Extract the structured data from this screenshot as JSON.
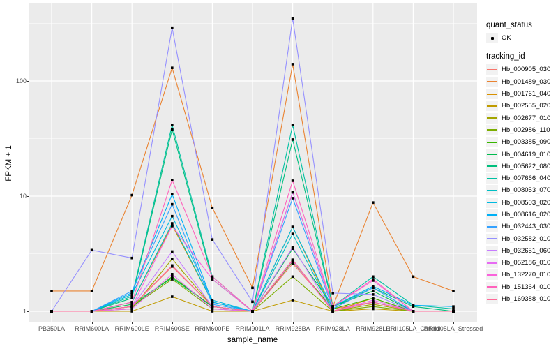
{
  "figure": {
    "x_axis_title": "sample_name",
    "y_axis_title": "FPKM + 1",
    "y_tick_labels": [
      "1",
      "10",
      "100"
    ]
  },
  "legend": {
    "quant_status": {
      "title": "quant_status",
      "items": [
        {
          "label": "OK",
          "symbol": "point"
        }
      ]
    },
    "tracking_id": {
      "title": "tracking_id"
    }
  },
  "colors": {
    "panel_background": "#EBEBEB",
    "grid": "#FFFFFF",
    "tick_text": "#4D4D4D",
    "point": "#000000",
    "legend_key_background": "#F2F2F2"
  },
  "chart_data": {
    "type": "line",
    "title": "",
    "xlabel": "sample_name",
    "ylabel": "FPKM + 1",
    "y_scale": "log10",
    "y_ticks": [
      1,
      10,
      100
    ],
    "y_minor_ticks": [
      3.162,
      31.62,
      316.2
    ],
    "ylim_log10": [
      -0.032,
      2.674
    ],
    "grid": true,
    "legend_position": "right",
    "point_legend": {
      "title": "quant_status",
      "items": [
        "OK"
      ]
    },
    "categories": [
      "PB350LA",
      "RRIM600LA",
      "RRIM600LE",
      "RRIM600SE",
      "RRIM600PE",
      "RRIM901LA",
      "RRIM928BA",
      "RRIM928LA",
      "RRIM928LE",
      "RRII105LA_Control",
      "RRII105LA_Stressed"
    ],
    "series": [
      {
        "name": "Hb_000905_030",
        "color": "#F8766D",
        "values": [
          1,
          1,
          1.1,
          2.45,
          1.1,
          1,
          2.6,
          1.05,
          1.2,
          1,
          1
        ]
      },
      {
        "name": "Hb_001489_030",
        "color": "#EA8331",
        "values": [
          1.5,
          1.5,
          10.2,
          130,
          7.9,
          1.6,
          140,
          1.1,
          8.8,
          2.0,
          1.5
        ]
      },
      {
        "name": "Hb_001761_040",
        "color": "#D89000",
        "values": [
          1,
          1,
          1.2,
          5.6,
          1.2,
          1,
          5.4,
          1,
          1.3,
          1,
          1
        ]
      },
      {
        "name": "Hb_002555_020",
        "color": "#C09B00",
        "values": [
          1,
          1,
          1,
          1.34,
          1,
          1,
          1.25,
          1,
          1.05,
          1,
          1
        ]
      },
      {
        "name": "Hb_002677_010",
        "color": "#A3A500",
        "values": [
          1,
          1,
          1.05,
          2.85,
          1.1,
          1,
          2.8,
          1,
          1.15,
          1,
          1
        ]
      },
      {
        "name": "Hb_002986_110",
        "color": "#7CAE00",
        "values": [
          1,
          1,
          1.1,
          1.9,
          1.05,
          1,
          2.0,
          1,
          1.1,
          1,
          1
        ]
      },
      {
        "name": "Hb_003385_090",
        "color": "#39B600",
        "values": [
          1,
          1,
          1.1,
          2.0,
          1.1,
          1,
          2.7,
          1.05,
          1.3,
          1,
          1
        ]
      },
      {
        "name": "Hb_004619_010",
        "color": "#00BB4E",
        "values": [
          1,
          1,
          1.15,
          1.95,
          1.1,
          1,
          3.5,
          1.1,
          1.5,
          1,
          1
        ]
      },
      {
        "name": "Hb_005622_080",
        "color": "#00BF7D",
        "values": [
          1,
          1,
          1.3,
          38,
          1.9,
          1,
          31,
          1.1,
          1.6,
          1.1,
          1
        ]
      },
      {
        "name": "Hb_007666_040",
        "color": "#00C1A3",
        "values": [
          1,
          1,
          1.35,
          41.5,
          2.0,
          1,
          41.5,
          1.1,
          2.0,
          1.13,
          1.05
        ]
      },
      {
        "name": "Hb_008053_070",
        "color": "#00BFC4",
        "values": [
          1,
          1,
          1.2,
          5.8,
          1.2,
          1,
          4.7,
          1,
          1.2,
          1,
          1
        ]
      },
      {
        "name": "Hb_008503_020",
        "color": "#00BAE0",
        "values": [
          1,
          1,
          1.4,
          6.7,
          1.25,
          1,
          5.4,
          1.05,
          1.6,
          1,
          1
        ]
      },
      {
        "name": "Hb_008616_020",
        "color": "#00B0F6",
        "values": [
          1,
          1,
          1.45,
          10.4,
          1.2,
          1,
          10.8,
          1.1,
          1.65,
          1.13,
          1.1
        ]
      },
      {
        "name": "Hb_032443_030",
        "color": "#35A2FF",
        "values": [
          1,
          1,
          1.5,
          8.5,
          1.15,
          1,
          9.6,
          1.05,
          1.6,
          1,
          1
        ]
      },
      {
        "name": "Hb_032582_010",
        "color": "#9590FF",
        "values": [
          1,
          3.4,
          2.9,
          290,
          4.2,
          1.21,
          350,
          1.44,
          1.4,
          1,
          1
        ]
      },
      {
        "name": "Hb_032651_060",
        "color": "#C77CFF",
        "values": [
          1,
          1,
          1.1,
          3.3,
          1.1,
          1,
          3.6,
          1,
          1.2,
          1,
          1
        ]
      },
      {
        "name": "Hb_052186_010",
        "color": "#E76BF3",
        "values": [
          1,
          1,
          1.05,
          2.1,
          1.05,
          1,
          2.75,
          1,
          1.25,
          1,
          1
        ]
      },
      {
        "name": "Hb_132270_010",
        "color": "#FA62DB",
        "values": [
          1,
          1,
          1.1,
          5.5,
          1.9,
          1,
          10.8,
          1.1,
          1.85,
          1,
          1
        ]
      },
      {
        "name": "Hb_151364_010",
        "color": "#FF62BC",
        "values": [
          1,
          1,
          1.2,
          13.8,
          2.0,
          1,
          13.6,
          1.1,
          1.9,
          1,
          1
        ]
      },
      {
        "name": "Hb_169388_010",
        "color": "#FF6A98",
        "values": [
          1,
          1,
          1.1,
          2.5,
          1.1,
          1,
          2.8,
          1,
          1.2,
          1,
          1
        ]
      }
    ]
  }
}
